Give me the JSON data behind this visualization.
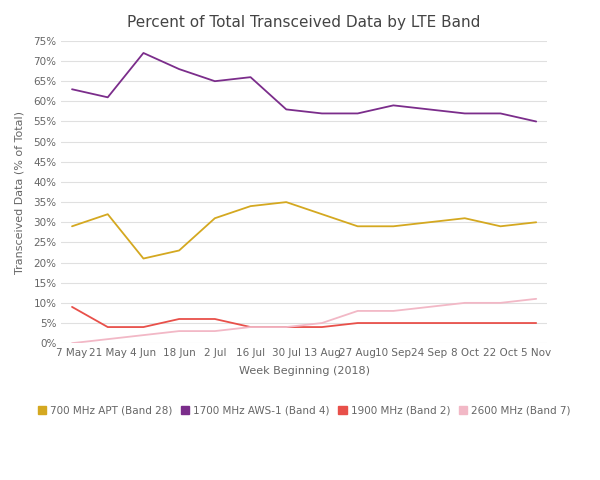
{
  "title": "Percent of Total Transceived Data by LTE Band",
  "xlabel": "Week Beginning (2018)",
  "ylabel": "Transceived Data (% of Total)",
  "x_labels": [
    "7 May",
    "21 May",
    "4 Jun",
    "18 Jun",
    "2 Jul",
    "16 Jul",
    "30 Jul",
    "13 Aug",
    "27 Aug",
    "10 Sep",
    "24 Sep",
    "8 Oct",
    "22 Oct",
    "5 Nov"
  ],
  "ylim": [
    0,
    75
  ],
  "yticks": [
    0,
    5,
    10,
    15,
    20,
    25,
    30,
    35,
    40,
    45,
    50,
    55,
    60,
    65,
    70,
    75
  ],
  "series": [
    {
      "label": "700 MHz APT (Band 28)",
      "color": "#D4A820",
      "values": [
        29,
        32,
        21,
        23,
        31,
        34,
        35,
        32,
        29,
        29,
        30,
        31,
        29,
        30
      ]
    },
    {
      "label": "1700 MHz AWS-1 (Band 4)",
      "color": "#7B2D8B",
      "values": [
        63,
        61,
        72,
        68,
        65,
        66,
        58,
        57,
        57,
        59,
        58,
        57,
        57,
        55
      ]
    },
    {
      "label": "1900 MHz (Band 2)",
      "color": "#E8504A",
      "values": [
        9,
        4,
        4,
        6,
        6,
        4,
        4,
        4,
        5,
        5,
        5,
        5,
        5,
        5
      ]
    },
    {
      "label": "2600 MHz (Band 7)",
      "color": "#F2B8C6",
      "values": [
        0,
        1,
        2,
        3,
        3,
        4,
        4,
        5,
        8,
        8,
        9,
        10,
        10,
        11
      ]
    }
  ],
  "background_color": "#ffffff",
  "grid_color": "#e0e0e0",
  "title_fontsize": 11,
  "tick_fontsize": 7.5,
  "label_fontsize": 8,
  "legend_fontsize": 7.5
}
